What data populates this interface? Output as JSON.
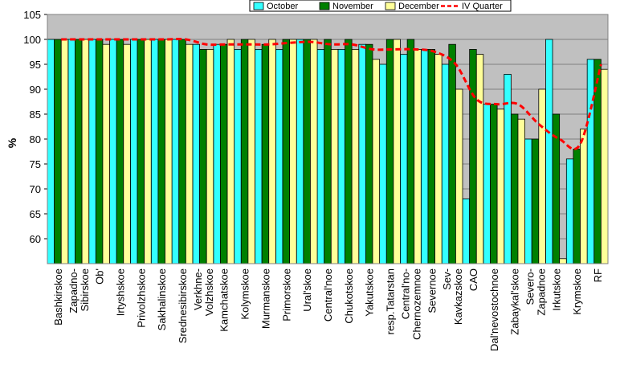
{
  "chart_data": {
    "type": "bar",
    "title": "",
    "xlabel": "",
    "ylabel": "%",
    "ylim": [
      55,
      105
    ],
    "yticks": [
      60,
      65,
      70,
      75,
      80,
      85,
      90,
      95,
      100,
      105
    ],
    "grid": true,
    "legend_position": "top-right",
    "categories": [
      "Bashkirskoe",
      "Zapadno-Sibirskoe",
      "Ob'",
      "Irtyshskoe",
      "Privolzhskoe",
      "Sakhalinskoe",
      "Srednesibirskoe",
      "Verkhne-Volzhskoe",
      "Kamchatskoe",
      "Kolymskoe",
      "Murmanskoe",
      "Primorskoe",
      "Ural'skoe",
      "Central'noe",
      "Chukotskoe",
      "Yakutskoe",
      "resp.Tatarstan",
      "Central'no-Chernozemnoe",
      "Severnoe",
      "Sev-Kavkazskoe",
      "CAO",
      "Dal'nevostochnoe",
      "Zabaykal'skoe",
      "Severo-Zapadnoe",
      "Irkutskoe",
      "Krymskoe",
      "RF"
    ],
    "category_lines": [
      [
        "Bashkirskoe"
      ],
      [
        "Zapadno-",
        "Sibirskoe"
      ],
      [
        "Ob'"
      ],
      [
        "Irtyshskoe"
      ],
      [
        "Privolzhskoe"
      ],
      [
        "Sakhalinskoe"
      ],
      [
        "Srednesibirskoe"
      ],
      [
        "Verkhne-",
        "Volzhskoe"
      ],
      [
        "Kamchatskoe"
      ],
      [
        "Kolymskoe"
      ],
      [
        "Murmanskoe"
      ],
      [
        "Primorskoe"
      ],
      [
        "Ural'skoe"
      ],
      [
        "Central'noe"
      ],
      [
        "Chukotskoe"
      ],
      [
        "Yakutskoe"
      ],
      [
        "resp.Tatarstan"
      ],
      [
        "Central'no-",
        "Chernozemnoe"
      ],
      [
        "Severnoe"
      ],
      [
        "Sev-",
        "Kavkazskoe"
      ],
      [
        "CAO"
      ],
      [
        "Dal'nevostochnoe"
      ],
      [
        "Zabaykal'skoe"
      ],
      [
        "Severo-",
        "Zapadnoe"
      ],
      [
        "Irkutskoe"
      ],
      [
        "Krymskoe"
      ],
      [
        "RF"
      ]
    ],
    "series": [
      {
        "name": "October",
        "kind": "bar",
        "color": "#33ffff",
        "values": [
          100,
          100,
          100,
          100,
          100,
          100,
          100,
          99,
          99,
          98,
          98,
          98,
          100,
          98,
          98,
          99,
          95,
          97,
          98,
          95,
          68,
          87,
          93,
          80,
          100,
          76,
          96
        ]
      },
      {
        "name": "November",
        "kind": "bar",
        "color": "#008000",
        "values": [
          100,
          100,
          100,
          100,
          100,
          100,
          100,
          98,
          99,
          100,
          99,
          100,
          100,
          100,
          100,
          99,
          100,
          100,
          98,
          99,
          98,
          87,
          85,
          80,
          85,
          78,
          96
        ]
      },
      {
        "name": "December",
        "kind": "bar",
        "color": "#ffff99",
        "values": [
          100,
          100,
          99,
          99,
          100,
          100,
          99,
          98,
          100,
          100,
          100,
          100,
          100,
          98,
          98,
          96,
          100,
          98,
          97,
          90,
          97,
          86,
          84,
          90,
          56,
          82,
          94
        ]
      },
      {
        "name": "IV Quarter",
        "kind": "line",
        "color": "#ff0000",
        "values": [
          100,
          100,
          100,
          100,
          100,
          100,
          100,
          99,
          99,
          99,
          99,
          99.3,
          99.5,
          99,
          99,
          98,
          98,
          98,
          97.5,
          95,
          88,
          87,
          87,
          83,
          80,
          79,
          95
        ]
      }
    ]
  }
}
